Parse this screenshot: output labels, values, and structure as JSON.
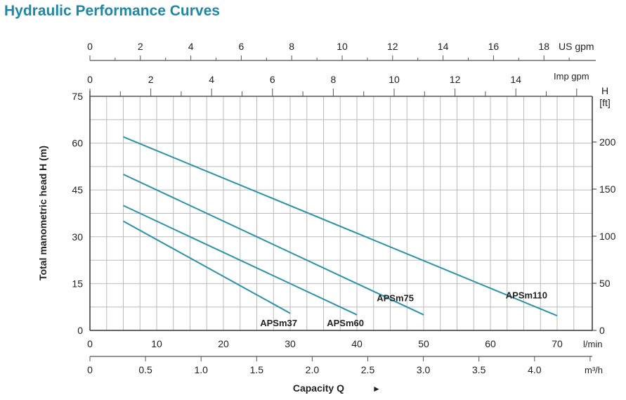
{
  "chart_data": {
    "type": "line",
    "title": "Hydraulic Performance Curves",
    "xlabel": "Capacity Q",
    "xunit": "l/min",
    "ylabel": "Total manometric head H (m)",
    "y2label": "H",
    "y2unit": "[ft]",
    "xlim": [
      0,
      75
    ],
    "ylim": [
      0,
      75
    ],
    "grid": true,
    "x_ticks": [
      0,
      10,
      20,
      30,
      40,
      50,
      60,
      70
    ],
    "y_ticks": [
      0,
      15,
      30,
      45,
      60,
      75
    ],
    "y2_ticks": [
      0,
      50,
      100,
      150,
      200
    ],
    "us_gpm": {
      "label": "US gpm",
      "ticks": [
        0,
        2,
        4,
        6,
        8,
        10,
        12,
        14,
        16,
        18
      ]
    },
    "imp_gpm": {
      "label": "Imp gpm",
      "ticks": [
        0,
        2,
        4,
        6,
        8,
        10,
        12,
        14
      ]
    },
    "m3h": {
      "label": "m³/h",
      "ticks": [
        "0",
        "0.5",
        "1.0",
        "1.5",
        "2.0",
        "2.5",
        "3.0",
        "3.5",
        "4.0"
      ]
    },
    "series": [
      {
        "name": "APSm37",
        "x": [
          5,
          30
        ],
        "y": [
          35,
          5.5
        ]
      },
      {
        "name": "APSm60",
        "x": [
          5,
          40
        ],
        "y": [
          40,
          5
        ]
      },
      {
        "name": "APSm75",
        "x": [
          5,
          50
        ],
        "y": [
          50,
          5
        ]
      },
      {
        "name": "APSm110",
        "x": [
          5,
          70
        ],
        "y": [
          62,
          4.7
        ]
      }
    ],
    "line_color": "#2a93a8"
  }
}
